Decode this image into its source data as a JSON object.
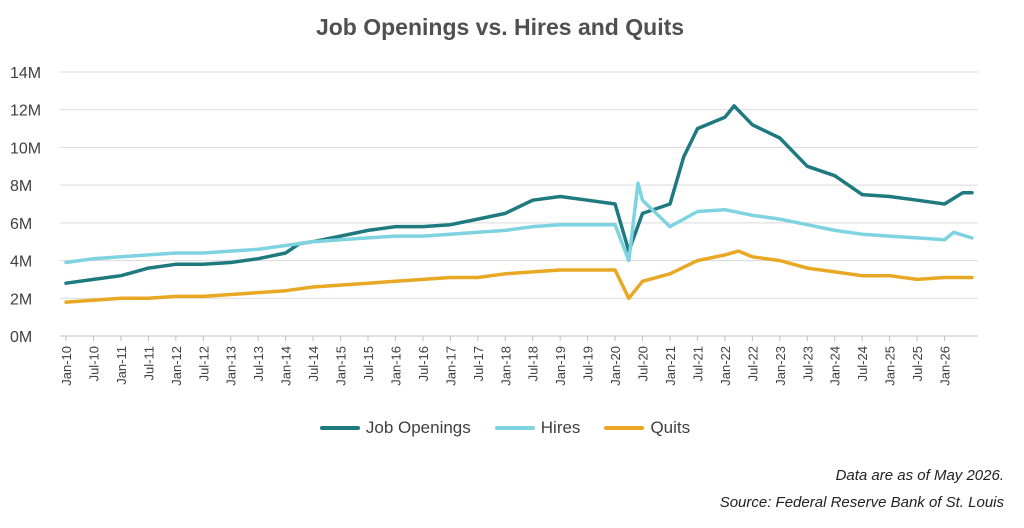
{
  "chart_data": {
    "type": "line",
    "title": "Job Openings vs. Hires and Quits",
    "xlabel": "",
    "ylabel": "",
    "ylim": [
      0,
      14
    ],
    "y_ticks": [
      "0M",
      "2M",
      "4M",
      "6M",
      "8M",
      "10M",
      "12M",
      "14M"
    ],
    "x_ticks": [
      "Jan-10",
      "Jul-10",
      "Jan-11",
      "Jul-11",
      "Jan-12",
      "Jul-12",
      "Jan-13",
      "Jul-13",
      "Jan-14",
      "Jul-14",
      "Jan-15",
      "Jul-15",
      "Jan-16",
      "Jul-16",
      "Jan-17",
      "Jul-17",
      "Jan-18",
      "Jul-18",
      "Jan-19",
      "Jul-19",
      "Jan-20",
      "Jul-20",
      "Jan-21",
      "Jul-21",
      "Jan-22",
      "Jul-22",
      "Jan-23",
      "Jul-23",
      "Jan-24",
      "Jul-24",
      "Jan-25",
      "Jul-25",
      "Jan-26"
    ],
    "x_range": [
      "Jan-10",
      "Jul-26"
    ],
    "grid": "horizontal",
    "legend_position": "bottom",
    "series": [
      {
        "name": "Job Openings",
        "color": "#1f7a80",
        "points": [
          [
            "2010-01",
            2.8
          ],
          [
            "2010-07",
            3.0
          ],
          [
            "2011-01",
            3.2
          ],
          [
            "2011-07",
            3.6
          ],
          [
            "2012-01",
            3.8
          ],
          [
            "2012-07",
            3.8
          ],
          [
            "2013-01",
            3.9
          ],
          [
            "2013-07",
            4.1
          ],
          [
            "2014-01",
            4.4
          ],
          [
            "2014-04",
            4.9
          ],
          [
            "2014-07",
            5.0
          ],
          [
            "2015-01",
            5.3
          ],
          [
            "2015-07",
            5.6
          ],
          [
            "2016-01",
            5.8
          ],
          [
            "2016-07",
            5.8
          ],
          [
            "2017-01",
            5.9
          ],
          [
            "2017-07",
            6.2
          ],
          [
            "2018-01",
            6.5
          ],
          [
            "2018-07",
            7.2
          ],
          [
            "2019-01",
            7.4
          ],
          [
            "2019-07",
            7.2
          ],
          [
            "2020-01",
            7.0
          ],
          [
            "2020-04",
            4.5
          ],
          [
            "2020-07",
            6.5
          ],
          [
            "2021-01",
            7.0
          ],
          [
            "2021-04",
            9.5
          ],
          [
            "2021-07",
            11.0
          ],
          [
            "2022-01",
            11.6
          ],
          [
            "2022-03",
            12.2
          ],
          [
            "2022-07",
            11.2
          ],
          [
            "2023-01",
            10.5
          ],
          [
            "2023-07",
            9.0
          ],
          [
            "2024-01",
            8.5
          ],
          [
            "2024-07",
            7.5
          ],
          [
            "2025-01",
            7.4
          ],
          [
            "2025-07",
            7.2
          ],
          [
            "2026-01",
            7.0
          ],
          [
            "2026-05",
            7.6
          ],
          [
            "2026-07",
            7.6
          ]
        ]
      },
      {
        "name": "Hires",
        "color": "#7dd3e0",
        "points": [
          [
            "2010-01",
            3.9
          ],
          [
            "2010-07",
            4.1
          ],
          [
            "2011-01",
            4.2
          ],
          [
            "2011-07",
            4.3
          ],
          [
            "2012-01",
            4.4
          ],
          [
            "2012-07",
            4.4
          ],
          [
            "2013-01",
            4.5
          ],
          [
            "2013-07",
            4.6
          ],
          [
            "2014-01",
            4.8
          ],
          [
            "2014-07",
            5.0
          ],
          [
            "2015-01",
            5.1
          ],
          [
            "2015-07",
            5.2
          ],
          [
            "2016-01",
            5.3
          ],
          [
            "2016-07",
            5.3
          ],
          [
            "2017-01",
            5.4
          ],
          [
            "2017-07",
            5.5
          ],
          [
            "2018-01",
            5.6
          ],
          [
            "2018-07",
            5.8
          ],
          [
            "2019-01",
            5.9
          ],
          [
            "2019-07",
            5.9
          ],
          [
            "2020-01",
            5.9
          ],
          [
            "2020-04",
            4.0
          ],
          [
            "2020-06",
            8.1
          ],
          [
            "2020-07",
            7.2
          ],
          [
            "2021-01",
            5.8
          ],
          [
            "2021-07",
            6.6
          ],
          [
            "2022-01",
            6.7
          ],
          [
            "2022-07",
            6.4
          ],
          [
            "2023-01",
            6.2
          ],
          [
            "2023-07",
            5.9
          ],
          [
            "2024-01",
            5.6
          ],
          [
            "2024-07",
            5.4
          ],
          [
            "2025-01",
            5.3
          ],
          [
            "2025-07",
            5.2
          ],
          [
            "2026-01",
            5.1
          ],
          [
            "2026-03",
            5.5
          ],
          [
            "2026-07",
            5.2
          ]
        ]
      },
      {
        "name": "Quits",
        "color": "#e8a824",
        "points": [
          [
            "2010-01",
            1.8
          ],
          [
            "2010-07",
            1.9
          ],
          [
            "2011-01",
            2.0
          ],
          [
            "2011-07",
            2.0
          ],
          [
            "2012-01",
            2.1
          ],
          [
            "2012-07",
            2.1
          ],
          [
            "2013-01",
            2.2
          ],
          [
            "2013-07",
            2.3
          ],
          [
            "2014-01",
            2.4
          ],
          [
            "2014-07",
            2.6
          ],
          [
            "2015-01",
            2.7
          ],
          [
            "2015-07",
            2.8
          ],
          [
            "2016-01",
            2.9
          ],
          [
            "2016-07",
            3.0
          ],
          [
            "2017-01",
            3.1
          ],
          [
            "2017-07",
            3.1
          ],
          [
            "2018-01",
            3.3
          ],
          [
            "2018-07",
            3.4
          ],
          [
            "2019-01",
            3.5
          ],
          [
            "2019-07",
            3.5
          ],
          [
            "2020-01",
            3.5
          ],
          [
            "2020-04",
            2.0
          ],
          [
            "2020-07",
            2.9
          ],
          [
            "2021-01",
            3.3
          ],
          [
            "2021-07",
            4.0
          ],
          [
            "2022-01",
            4.3
          ],
          [
            "2022-04",
            4.5
          ],
          [
            "2022-07",
            4.2
          ],
          [
            "2023-01",
            4.0
          ],
          [
            "2023-07",
            3.6
          ],
          [
            "2024-01",
            3.4
          ],
          [
            "2024-07",
            3.2
          ],
          [
            "2025-01",
            3.2
          ],
          [
            "2025-07",
            3.0
          ],
          [
            "2026-01",
            3.1
          ],
          [
            "2026-07",
            3.1
          ]
        ]
      }
    ]
  },
  "notes": {
    "line1": "Data are as of May 2026.",
    "line2": "Source: Federal Reserve Bank of St. Louis"
  }
}
